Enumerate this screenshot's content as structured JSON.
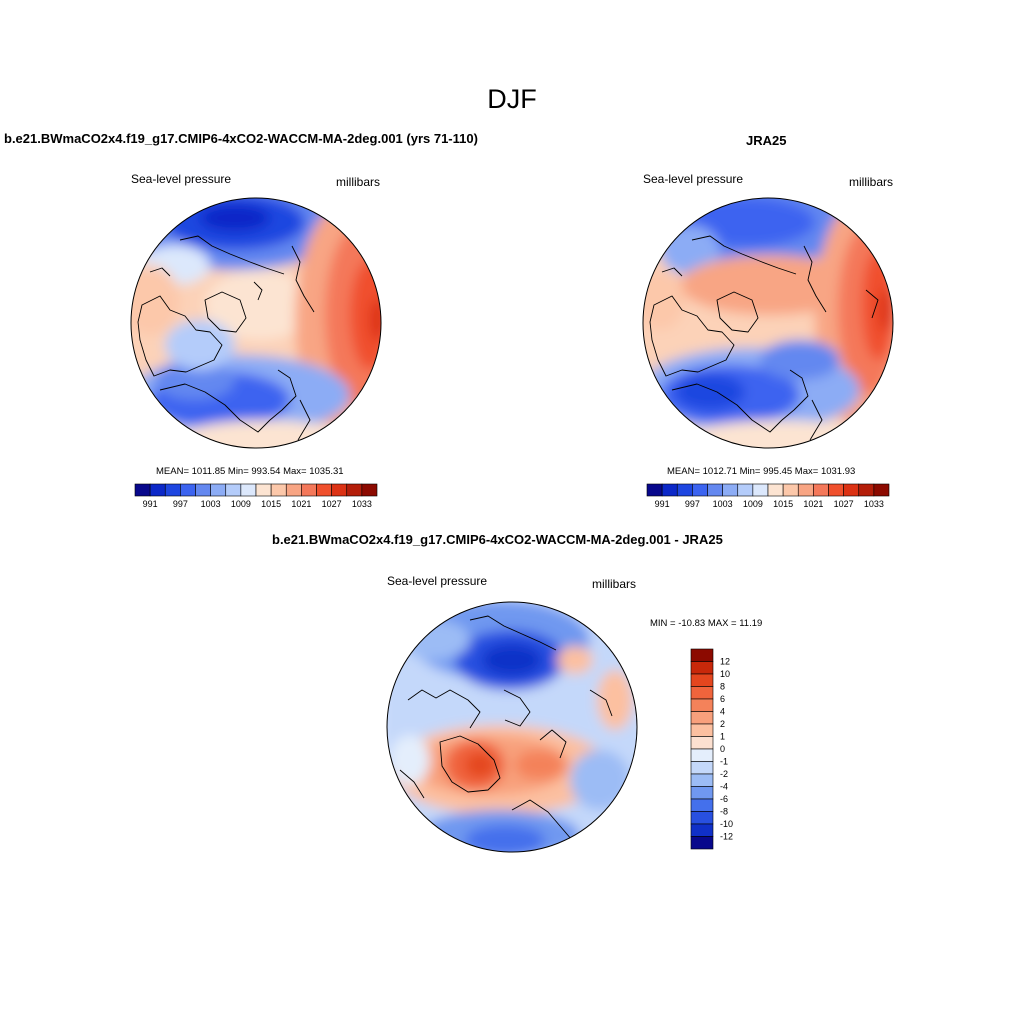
{
  "figure": {
    "season": "DJF",
    "model_title": "b.e21.BWmaCO2x4.f19_g17.CMIP6-4xCO2-WACCM-MA-2deg.001 (yrs 71-110)",
    "obs_title": "JRA25",
    "diff_title": "b.e21.BWmaCO2x4.f19_g17.CMIP6-4xCO2-WACCM-MA-2deg.001 - JRA25"
  },
  "panels": {
    "model": {
      "variable": "Sea-level pressure",
      "units": "millibars",
      "stats": "MEAN= 1011.85  Min= 993.54  Max= 1035.31"
    },
    "obs": {
      "variable": "Sea-level pressure",
      "units": "millibars",
      "stats": "MEAN= 1012.71  Min= 995.45  Max= 1031.93"
    },
    "diff": {
      "variable": "Sea-level pressure",
      "units": "millibars",
      "stats": "MIN = -10.83 MAX =  11.19"
    }
  },
  "colorbars": {
    "abs": {
      "colors": [
        "#08088c",
        "#0c28c8",
        "#1e46e0",
        "#3c64f0",
        "#6488f0",
        "#8cacf5",
        "#b4ccfa",
        "#dce8fc",
        "#fce4d2",
        "#fcc8aa",
        "#f8a584",
        "#f4785a",
        "#f0502d",
        "#dc3214",
        "#b41e0a",
        "#8c0a00"
      ],
      "tick_labels": [
        "991",
        "997",
        "1003",
        "1009",
        "1015",
        "1021",
        "1027",
        "1033"
      ]
    },
    "diff": {
      "colors": [
        "#8c0a00",
        "#c8280a",
        "#e4461e",
        "#f0643c",
        "#f4825a",
        "#f8a07c",
        "#fcc0a0",
        "#fce0d0",
        "#e4eefc",
        "#c4d8fa",
        "#9cbcf5",
        "#7098f0",
        "#4470ec",
        "#2850e0",
        "#1030c8",
        "#08088c"
      ],
      "tick_labels": [
        "12",
        "10",
        "8",
        "6",
        "4",
        "2",
        "1",
        "0",
        "-1",
        "-2",
        "-4",
        "-6",
        "-8",
        "-10",
        "-12"
      ]
    }
  },
  "map_colors": {
    "abs_levels": [
      "#1e46e0",
      "#3c64f0",
      "#6488f0",
      "#8cacf5",
      "#b4ccfa",
      "#dce8fc",
      "#fce4d2",
      "#fcc8aa",
      "#f8a584",
      "#f4785a",
      "#f0502d",
      "#dc3214"
    ],
    "diff_levels": [
      "#1030c8",
      "#2850e0",
      "#4470ec",
      "#7098f0",
      "#9cbcf5",
      "#c4d8fa",
      "#e4eefc",
      "#fce0d0",
      "#fcc0a0",
      "#f8a07c",
      "#f4825a",
      "#f0643c",
      "#e4461e",
      "#c8280a"
    ]
  }
}
